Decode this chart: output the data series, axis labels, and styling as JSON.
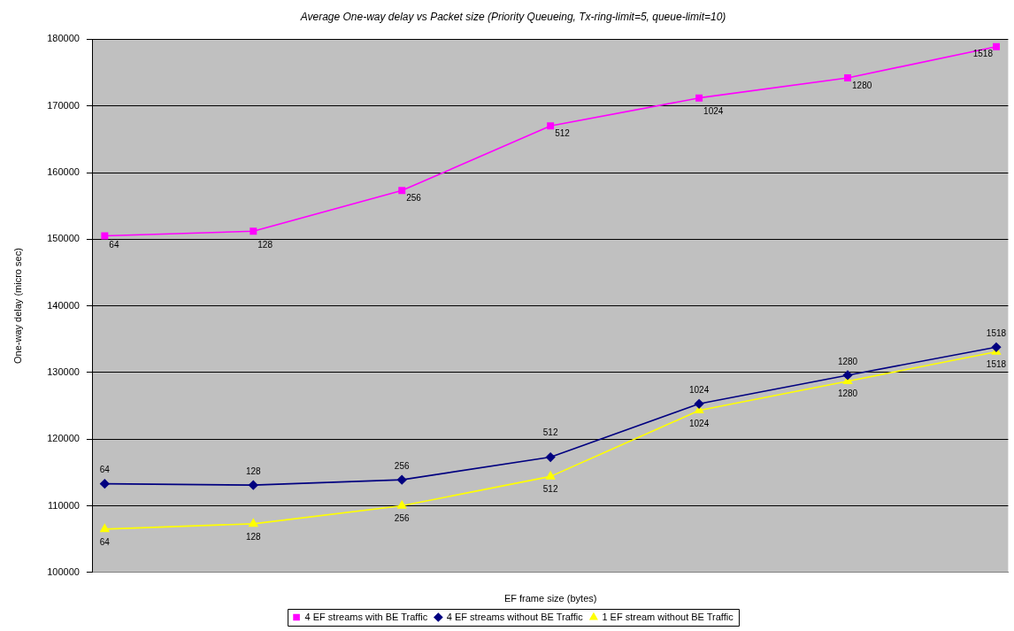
{
  "chart_data": {
    "type": "line",
    "title": "Average One-way delay vs Packet size (Priority Queueing, Tx-ring-limit=5, queue-limit=10)",
    "xlabel": "EF frame size (bytes)",
    "ylabel": "One-way delay (micro sec)",
    "categories": [
      null,
      null,
      null,
      null,
      null,
      null,
      null
    ],
    "ylim": [
      100000,
      180000
    ],
    "yticks": [
      100000,
      110000,
      120000,
      130000,
      140000,
      150000,
      160000,
      170000,
      180000
    ],
    "grid": "y",
    "legend": "bottom",
    "series": [
      {
        "name": "4 EF streams with BE Traffic",
        "color": "#ff00ff",
        "marker": "square",
        "values": [
          150500,
          151200,
          157300,
          167000,
          171200,
          174200,
          178900
        ]
      },
      {
        "name": "4 EF streams without BE Traffic",
        "color": "#000080",
        "marker": "diamond",
        "values": [
          113300,
          113100,
          113900,
          117300,
          125300,
          129600,
          133800
        ]
      },
      {
        "name": "1 EF stream without BE Traffic",
        "color": "#ffff00",
        "marker": "triangle",
        "values": [
          106500,
          107300,
          110000,
          114400,
          124300,
          128700,
          133100
        ]
      }
    ],
    "annotations": [
      {
        "text": "64",
        "y": 150500
      },
      {
        "text": "128",
        "y": 151200
      },
      {
        "text": "256",
        "y": 157300
      },
      {
        "text": "512",
        "y": 167000
      },
      {
        "text": "1024",
        "y": 171200
      },
      {
        "text": "1280",
        "y": 174200
      },
      {
        "text": "1518",
        "y": 178900
      },
      {
        "text": "64",
        "y": 113300
      },
      {
        "text": "128",
        "y": 113100
      },
      {
        "text": "256",
        "y": 113900
      },
      {
        "text": "512",
        "y": 117300
      },
      {
        "text": "1024",
        "y": 125300
      },
      {
        "text": "1280",
        "y": 129600
      },
      {
        "text": "1518",
        "y": 133800
      },
      {
        "text": "64",
        "y": 106500
      },
      {
        "text": "128",
        "y": 107300
      },
      {
        "text": "256",
        "y": 110000
      },
      {
        "text": "512",
        "y": 114400
      },
      {
        "text": "1024",
        "y": 124300
      },
      {
        "text": "1280",
        "y": 128700
      },
      {
        "text": "1518",
        "y": 133100
      }
    ]
  }
}
